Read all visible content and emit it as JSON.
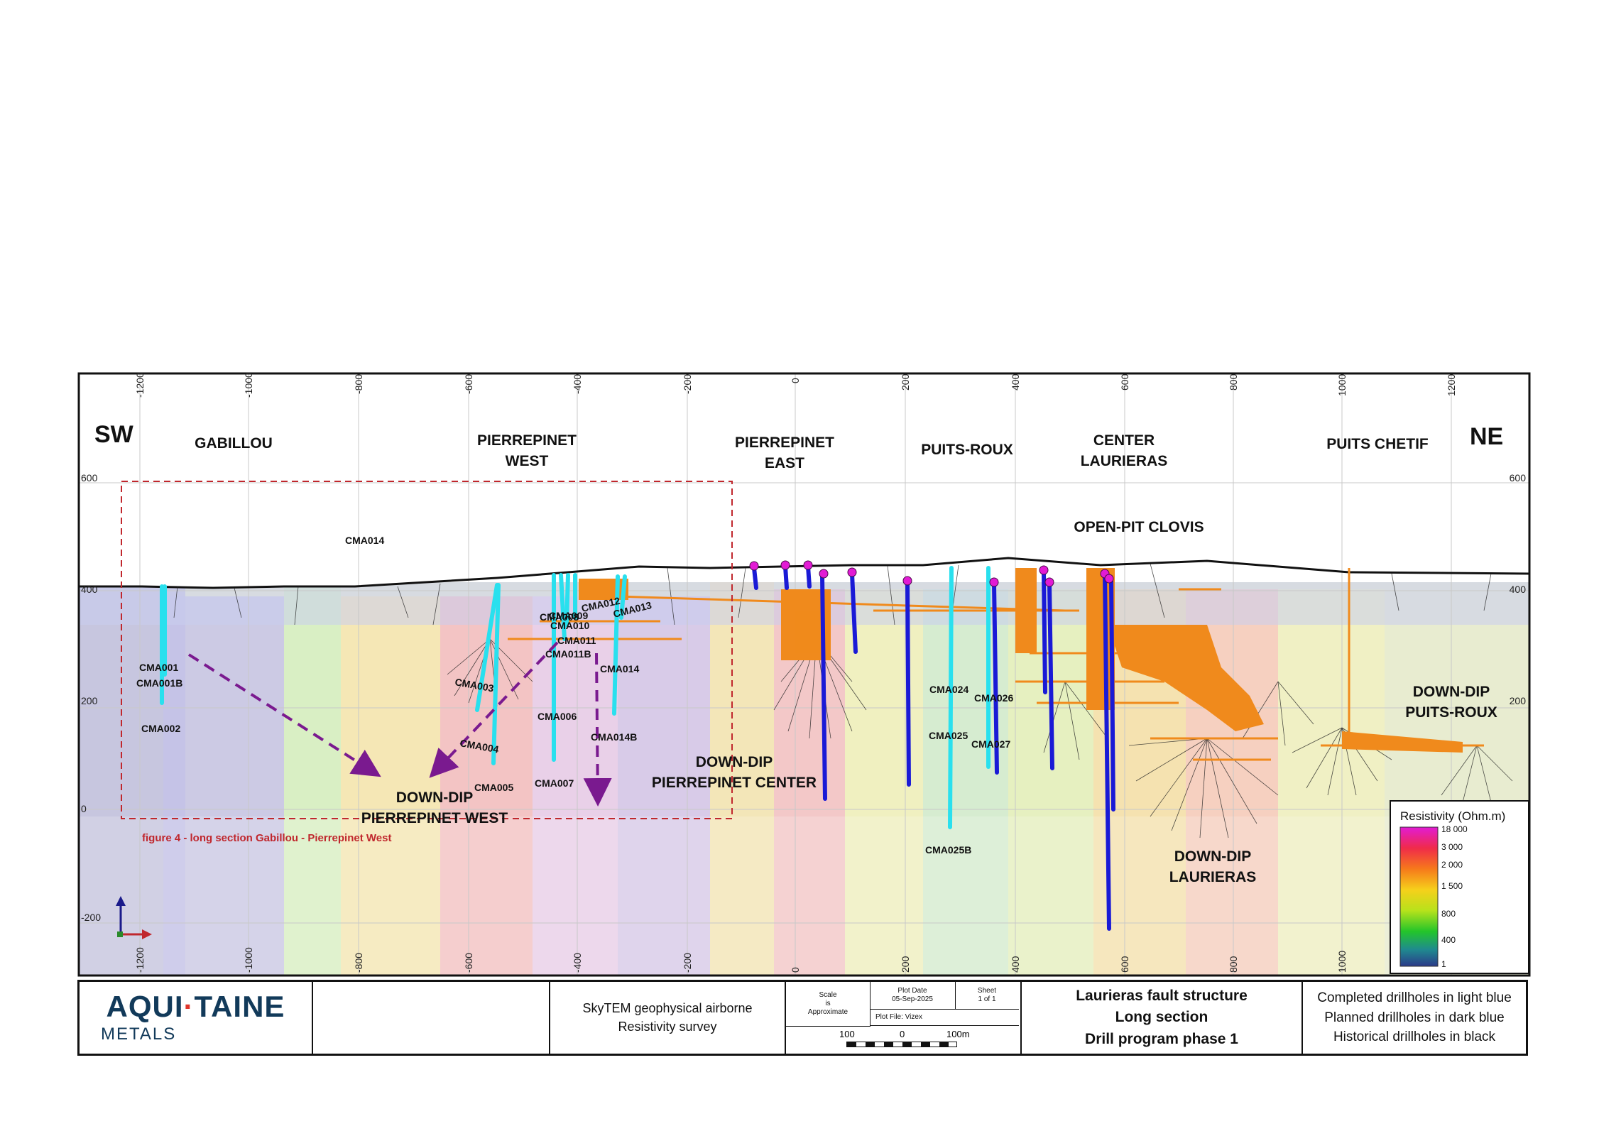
{
  "section": {
    "top_ticks": [
      "-1200",
      "-1000",
      "-800",
      "-600",
      "-400",
      "-200",
      "0",
      "200",
      "400",
      "600",
      "800",
      "1000",
      "1200"
    ],
    "bottom_ticks": [
      "-1200",
      "-1000",
      "-800",
      "-600",
      "-400",
      "-200",
      "0",
      "200",
      "400",
      "600",
      "800",
      "1000"
    ],
    "elevation_left": [
      "600",
      "400",
      "200",
      "0",
      "-200"
    ],
    "elevation_right": [
      "600",
      "400",
      "200"
    ],
    "direction_left": "SW",
    "direction_right": "NE",
    "zones": {
      "gabillou": "GABILLOU",
      "pierrepinet_west_1": "PIERREPINET",
      "pierrepinet_west_2": "WEST",
      "pierrepinet_east_1": "PIERREPINET",
      "pierrepinet_east_2": "EAST",
      "puits_roux": "PUITS-ROUX",
      "center_laurieras_1": "CENTER",
      "center_laurieras_2": "LAURIERAS",
      "puits_chetif": "PUITS CHETIF",
      "open_pit": "OPEN-PIT CLOVIS"
    },
    "targets": {
      "dd_pp_west_1": "DOWN-DIP",
      "dd_pp_west_2": "PIERREPINET WEST",
      "dd_pp_center_1": "DOWN-DIP",
      "dd_pp_center_2": "PIERREPINET CENTER",
      "dd_laurieras_1": "DOWN-DIP",
      "dd_laurieras_2": "LAURIERAS",
      "dd_puits_roux_1": "DOWN-DIP",
      "dd_puits_roux_2": "PUITS-ROUX"
    },
    "figure_note": "figure 4 - long section Gabillou - Pierrepinet West",
    "drillholes": {
      "cma014_top": "CMA014",
      "cma001": "CMA001",
      "cma001b": "CMA001B",
      "cma002": "CMA002",
      "cma003": "CMA003",
      "cma004": "CMA004",
      "cma005": "CMA005",
      "cma006": "CMA006",
      "cma007": "CMA007",
      "cma008": "CMA008",
      "cma009": "CMA009",
      "cma010": "CMA010",
      "cma011": "CMA011",
      "cma011b": "CMA011B",
      "cma012": "CMA012",
      "cma013": "CMA013",
      "cma014": "CMA014",
      "cma014b": "CMA014B",
      "cma024": "CMA024",
      "cma025": "CMA025",
      "cma025b": "CMA025B",
      "cma026": "CMA026",
      "cma027": "CMA027"
    },
    "colors": {
      "completed": "#29e0ee",
      "planned": "#1a1ad6",
      "workings": "#f08a1c",
      "targets_arrow": "#7a1a8f",
      "outline": "#c0272d"
    }
  },
  "resistivity_legend": {
    "title": "Resistivity (Ohm.m)",
    "ticks": [
      "18 000",
      "3 000",
      "2 000",
      "1 500",
      "800",
      "400",
      "1"
    ]
  },
  "footer": {
    "logo_main_1": "AQUI",
    "logo_dot": "·",
    "logo_main_2": "TAINE",
    "logo_sub": "METALS",
    "survey_1": "SkyTEM geophysical airborne",
    "survey_2": "Resistivity survey",
    "scale_1": "Scale",
    "scale_2": "is",
    "scale_3": "Approximate",
    "plot_date_label": "Plot Date",
    "plot_date": "05-Sep-2025",
    "sheet_label": "Sheet",
    "sheet": "1 of 1",
    "plot_file": "Plot File: Vizex",
    "scale_left": "100",
    "scale_mid": "0",
    "scale_right": "100m",
    "title_1": "Laurieras fault structure",
    "title_2": "Long section",
    "title_3": "Drill program phase 1",
    "legend_1": "Completed drillholes in light blue",
    "legend_2": "Planned drillholes in dark blue",
    "legend_3": "Historical drillholes in black"
  }
}
